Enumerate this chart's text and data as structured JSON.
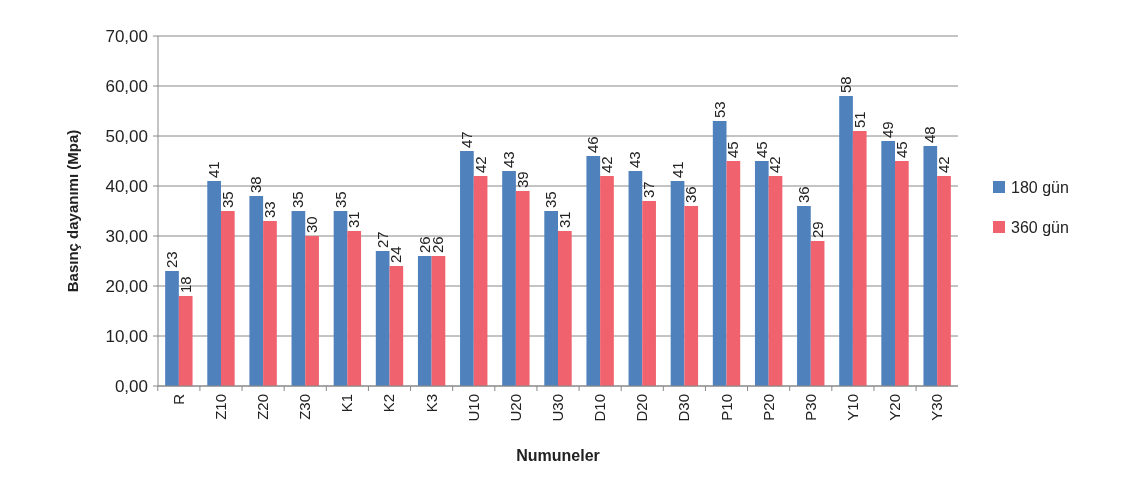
{
  "chart_data": {
    "type": "bar",
    "xlabel": "Numuneler",
    "ylabel": "Basınç dayanımı (Mpa)",
    "categories": [
      "R",
      "Z10",
      "Z20",
      "Z30",
      "K1",
      "K2",
      "K3",
      "U10",
      "U20",
      "U30",
      "D10",
      "D20",
      "D30",
      "P10",
      "P20",
      "P30",
      "Y10",
      "Y20",
      "Y30"
    ],
    "series": [
      {
        "name": "180 gün",
        "color": "#4f81bd",
        "values": [
          23,
          41,
          38,
          35,
          35,
          27,
          26,
          47,
          43,
          35,
          46,
          43,
          41,
          53,
          45,
          36,
          58,
          49,
          48
        ]
      },
      {
        "name": "360 gün",
        "color": "#f0626e",
        "values": [
          18,
          35,
          33,
          30,
          31,
          24,
          26,
          42,
          39,
          31,
          42,
          37,
          36,
          45,
          42,
          29,
          51,
          45,
          42
        ]
      }
    ],
    "ylim": [
      0,
      70
    ],
    "yticks": [
      {
        "value": 0,
        "label": "0,00"
      },
      {
        "value": 10,
        "label": "10,00"
      },
      {
        "value": 20,
        "label": "20,00"
      },
      {
        "value": 30,
        "label": "30,00"
      },
      {
        "value": 40,
        "label": "40,00"
      },
      {
        "value": 50,
        "label": "50,00"
      },
      {
        "value": 60,
        "label": "60,00"
      },
      {
        "value": 70,
        "label": "70,00"
      }
    ],
    "grid": "y",
    "legend": "right",
    "data_labels": true
  }
}
